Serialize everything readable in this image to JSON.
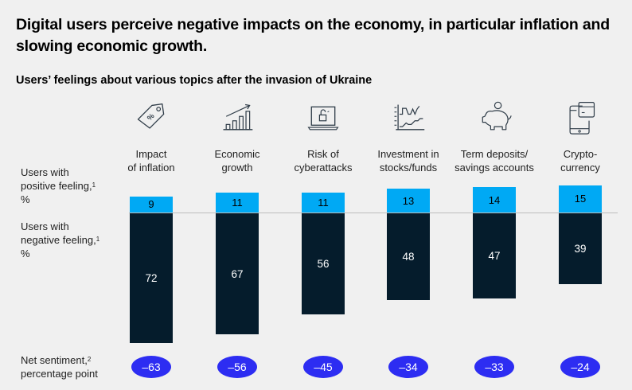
{
  "title": "Digital users perceive negative impacts on the economy, in particular inflation and slowing economic growth.",
  "subtitle": "Users’ feelings about various topics after the invasion of Ukraine",
  "row_labels": {
    "positive": {
      "line1": "Users with",
      "line2": "positive feeling,",
      "sup": "1",
      "line3": "%"
    },
    "negative": {
      "line1": "Users with",
      "line2": "negative feeling,",
      "sup": "1",
      "line3": "%"
    },
    "net": {
      "line1": "Net sentiment,",
      "sup": "2",
      "line2": "percentage point"
    }
  },
  "colors": {
    "positive": "#00a9f4",
    "negative": "#051c2c",
    "net": "#2d2df2",
    "icon_stroke": "#2e3b47"
  },
  "chart_data": {
    "type": "bar",
    "title": "Users’ feelings about various topics after the invasion of Ukraine",
    "categories": [
      {
        "line1": "Impact",
        "line2": "of inflation",
        "icon": "price-tag-percent-icon"
      },
      {
        "line1": "Economic",
        "line2": "growth",
        "icon": "growth-chart-icon"
      },
      {
        "line1": "Risk of",
        "line2": "cyberattacks",
        "icon": "laptop-unlocked-icon"
      },
      {
        "line1": "Investment in",
        "line2": "stocks/funds",
        "icon": "stock-chart-icon"
      },
      {
        "line1": "Term deposits/",
        "line2": "savings accounts",
        "icon": "piggy-bank-icon"
      },
      {
        "line1": "Crypto-",
        "line2": "currency",
        "icon": "phone-card-icon"
      }
    ],
    "series": [
      {
        "name": "Users with positive feeling, %",
        "values": [
          9,
          11,
          11,
          13,
          14,
          15
        ]
      },
      {
        "name": "Users with negative feeling, %",
        "values": [
          72,
          67,
          56,
          48,
          47,
          39
        ]
      },
      {
        "name": "Net sentiment, percentage point",
        "values": [
          -63,
          -56,
          -45,
          -34,
          -33,
          -24
        ]
      }
    ],
    "net_labels": [
      "–63",
      "–56",
      "–45",
      "–34",
      "–33",
      "–24"
    ],
    "xlabel": "",
    "ylabel": "%",
    "grid": false,
    "legend": "left row labels"
  }
}
